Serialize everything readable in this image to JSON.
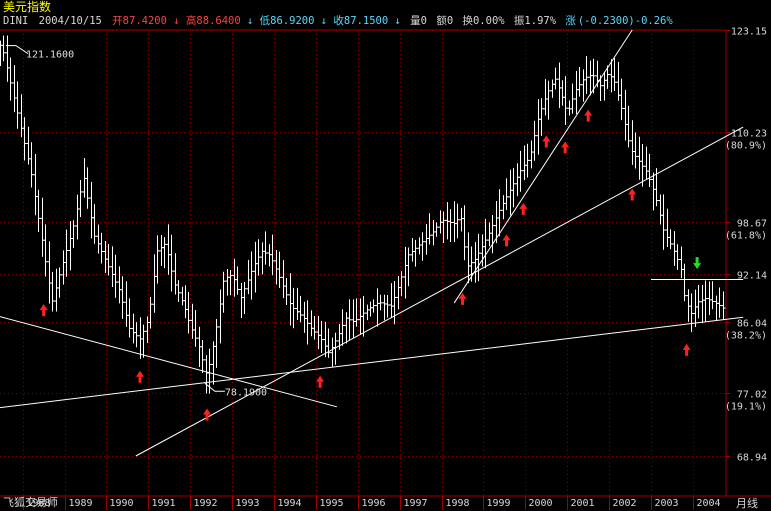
{
  "header": {
    "title": "美元指数",
    "symbol": "DINI",
    "date": "2004/10/15",
    "open_label": "开",
    "open": "87.4200",
    "high_label": "高",
    "high": "88.6400",
    "low_label": "低",
    "low": "86.9200",
    "close_label": "收",
    "close": "87.1500",
    "volume_label": "量",
    "volume": "0",
    "amount_label": "额",
    "amount": "0",
    "turnover_label": "换",
    "turnover": "0.00%",
    "amplitude_label": "振",
    "amplitude": "1.97%",
    "change_label": "涨",
    "change": "(-0.2300)-0.26%",
    "down_arrow": "↓"
  },
  "footer": {
    "brand": "飞狐交易师",
    "period": "月线"
  },
  "colors": {
    "background": "#000000",
    "bar": "#ffffff",
    "grid": "#7a0000",
    "axis": "#a00000",
    "up_arrow": "#ff2020",
    "down_arrow": "#20e020",
    "trendline": "#ffffff"
  },
  "chart_data": {
    "type": "bar",
    "subtype": "ohlc",
    "title": "美元指数",
    "period": "monthly",
    "x_range": [
      "1987-06",
      "2004-10"
    ],
    "ylim": [
      68.94,
      123.15
    ],
    "y_ticks": [
      {
        "value": 123.15,
        "label": "123.15",
        "pct": ""
      },
      {
        "value": 110.23,
        "label": "110.23",
        "pct": "(80.9%)"
      },
      {
        "value": 98.67,
        "label": "98.67",
        "pct": "(61.8%)"
      },
      {
        "value": 92.14,
        "label": "92.14",
        "pct": ""
      },
      {
        "value": 86.04,
        "label": "86.04",
        "pct": "(38.2%)"
      },
      {
        "value": 77.02,
        "label": "77.02",
        "pct": "(19.1%)"
      },
      {
        "value": 68.94,
        "label": "68.94",
        "pct": ""
      }
    ],
    "x_ticks": [
      {
        "t": 1988.0,
        "label": "1988"
      },
      {
        "t": 1989.0,
        "label": "1989"
      },
      {
        "t": 1990.0,
        "label": "1990"
      },
      {
        "t": 1991.0,
        "label": "1991"
      },
      {
        "t": 1992.0,
        "label": "1992"
      },
      {
        "t": 1993.0,
        "label": "1993"
      },
      {
        "t": 1994.0,
        "label": "1994"
      },
      {
        "t": 1995.0,
        "label": "1995"
      },
      {
        "t": 1996.0,
        "label": "1996"
      },
      {
        "t": 1997.0,
        "label": "1997"
      },
      {
        "t": 1998.0,
        "label": "1998"
      },
      {
        "t": 1999.0,
        "label": "1999"
      },
      {
        "t": 2000.0,
        "label": "2000"
      },
      {
        "t": 2001.0,
        "label": "2001"
      },
      {
        "t": 2002.0,
        "label": "2002"
      },
      {
        "t": 2003.0,
        "label": "2003"
      },
      {
        "t": 2004.0,
        "label": "2004"
      }
    ],
    "annotations": [
      {
        "label": "121.1600",
        "t": 1987.6,
        "value": 121.16
      },
      {
        "label": "78.1900",
        "t": 1992.35,
        "value": 78.19
      }
    ],
    "path_points": [
      [
        1987.5,
        121.2
      ],
      [
        1987.9,
        112.0
      ],
      [
        1988.2,
        105.0
      ],
      [
        1988.5,
        95.0
      ],
      [
        1988.7,
        88.5
      ],
      [
        1988.9,
        92.5
      ],
      [
        1989.2,
        98.0
      ],
      [
        1989.45,
        104.5
      ],
      [
        1989.7,
        97.0
      ],
      [
        1990.0,
        93.5
      ],
      [
        1990.3,
        90.0
      ],
      [
        1990.55,
        85.0
      ],
      [
        1990.8,
        83.8
      ],
      [
        1991.0,
        86.5
      ],
      [
        1991.2,
        95.0
      ],
      [
        1991.4,
        96.0
      ],
      [
        1991.6,
        91.0
      ],
      [
        1991.85,
        88.0
      ],
      [
        1992.0,
        85.5
      ],
      [
        1992.2,
        83.0
      ],
      [
        1992.4,
        79.0
      ],
      [
        1992.6,
        84.5
      ],
      [
        1992.8,
        91.5
      ],
      [
        1993.0,
        92.0
      ],
      [
        1993.2,
        89.0
      ],
      [
        1993.5,
        93.0
      ],
      [
        1993.7,
        95.0
      ],
      [
        1993.9,
        94.5
      ],
      [
        1994.1,
        92.0
      ],
      [
        1994.4,
        88.0
      ],
      [
        1994.7,
        86.5
      ],
      [
        1994.9,
        85.0
      ],
      [
        1995.1,
        84.0
      ],
      [
        1995.3,
        82.0
      ],
      [
        1995.5,
        84.0
      ],
      [
        1995.7,
        86.5
      ],
      [
        1995.9,
        86.0
      ],
      [
        1996.2,
        87.5
      ],
      [
        1996.5,
        88.5
      ],
      [
        1996.8,
        88.0
      ],
      [
        1997.0,
        91.0
      ],
      [
        1997.2,
        94.5
      ],
      [
        1997.5,
        96.0
      ],
      [
        1997.8,
        97.5
      ],
      [
        1998.0,
        99.0
      ],
      [
        1998.3,
        98.5
      ],
      [
        1998.45,
        99.5
      ],
      [
        1998.6,
        93.0
      ],
      [
        1998.8,
        94.0
      ],
      [
        1999.1,
        97.0
      ],
      [
        1999.4,
        100.5
      ],
      [
        1999.7,
        103.5
      ],
      [
        1999.9,
        105.5
      ],
      [
        2000.1,
        107.0
      ],
      [
        2000.3,
        112.0
      ],
      [
        2000.5,
        115.0
      ],
      [
        2000.7,
        117.0
      ],
      [
        2000.85,
        115.0
      ],
      [
        2001.0,
        112.5
      ],
      [
        2001.2,
        115.5
      ],
      [
        2001.4,
        117.0
      ],
      [
        2001.6,
        117.5
      ],
      [
        2001.8,
        116.0
      ],
      [
        2001.95,
        117.5
      ],
      [
        2002.1,
        117.0
      ],
      [
        2002.3,
        113.0
      ],
      [
        2002.5,
        108.0
      ],
      [
        2002.7,
        106.5
      ],
      [
        2002.9,
        105.0
      ],
      [
        2003.1,
        102.0
      ],
      [
        2003.3,
        97.5
      ],
      [
        2003.5,
        95.5
      ],
      [
        2003.7,
        93.0
      ],
      [
        2003.8,
        89.0
      ],
      [
        2003.95,
        87.0
      ],
      [
        2004.1,
        88.5
      ],
      [
        2004.3,
        89.0
      ],
      [
        2004.5,
        88.5
      ],
      [
        2004.65,
        88.0
      ],
      [
        2004.8,
        87.4
      ]
    ],
    "trendlines": [
      {
        "from": [
          1987.3,
          86.9
        ],
        "to": [
          1995.5,
          75.2
        ]
      },
      {
        "from": [
          1987.0,
          74.8
        ],
        "to": [
          2005.2,
          86.6
        ]
      },
      {
        "from": [
          1990.7,
          68.94
        ],
        "to": [
          2005.2,
          110.8
        ]
      },
      {
        "from": [
          1998.3,
          88.4
        ],
        "to": [
          2002.55,
          123.15
        ]
      },
      {
        "from": [
          2003.0,
          91.4
        ],
        "to": [
          2005.2,
          91.4
        ]
      }
    ],
    "buy_signals": [
      1988.5,
      1990.8,
      1992.4,
      1995.1,
      1998.5,
      1999.55,
      1999.95,
      2000.5,
      2000.95,
      2001.5,
      2002.55,
      2003.85
    ],
    "sell_signals": [
      2004.1
    ]
  }
}
